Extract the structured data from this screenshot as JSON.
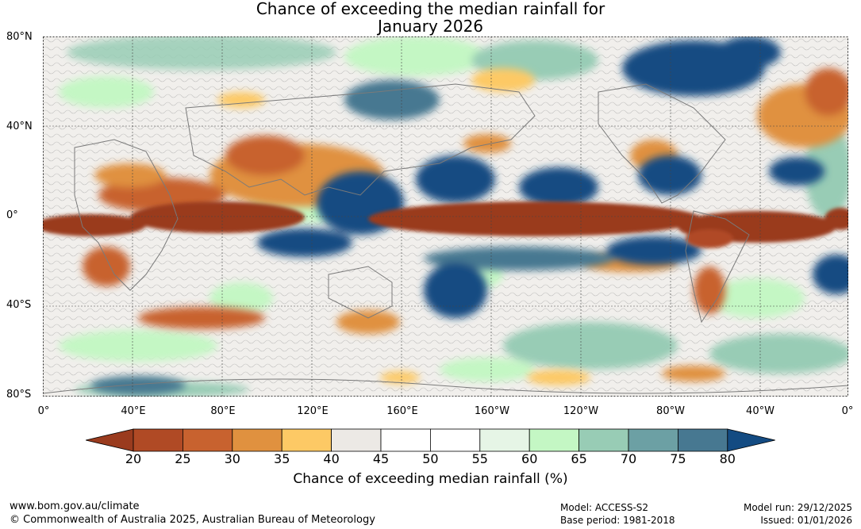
{
  "title": {
    "line1": "Chance of exceeding the median rainfall for",
    "line2": "January 2026"
  },
  "axes": {
    "lat_labels": [
      "80°N",
      "40°N",
      "0°",
      "40°S",
      "80°S"
    ],
    "lon_labels": [
      "0°",
      "40°E",
      "80°E",
      "120°E",
      "160°E",
      "160°W",
      "120°W",
      "80°W",
      "40°W",
      "0°"
    ]
  },
  "colorbar": {
    "ticks": [
      "20",
      "25",
      "30",
      "35",
      "40",
      "45",
      "50",
      "55",
      "60",
      "65",
      "70",
      "75",
      "80"
    ],
    "colors": [
      "#9a3b1e",
      "#b04a25",
      "#c8622f",
      "#e0913f",
      "#fdc965",
      "#ece9e5",
      "#ffffff",
      "#ffffff",
      "#e6f5e6",
      "#c4f7c4",
      "#98ccb5",
      "#6ca0a4",
      "#477891",
      "#134b82"
    ],
    "label": "Chance of exceeding median rainfall (%)"
  },
  "footer": {
    "website": "www.bom.gov.au/climate",
    "copyright": "© Commonwealth of Australia 2025, Australian Bureau of Meteorology",
    "model": "Model: ACCESS-S2",
    "base_period": "Base period: 1981-2018",
    "model_run": "Model run: 29/12/2025",
    "issued": "Issued: 01/01/2026"
  }
}
